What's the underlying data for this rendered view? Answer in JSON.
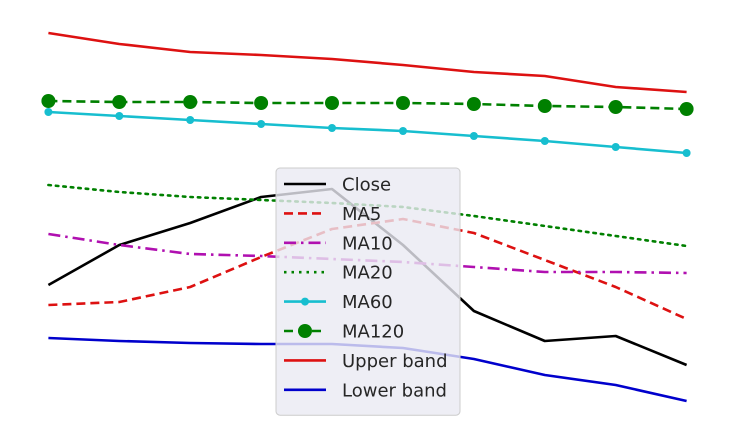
{
  "chart_data": {
    "type": "line",
    "title": "",
    "xlabel": "",
    "ylabel": "",
    "x": [
      0,
      1,
      2,
      3,
      4,
      5,
      6,
      7,
      8,
      9
    ],
    "xlim": [
      -0.02,
      9.02
    ],
    "ylim": [
      0,
      435
    ],
    "axes_visible": false,
    "grid": false,
    "legend_placement": "bottom-center",
    "series": [
      {
        "name": "Close",
        "color": "#000000",
        "dash": "solid",
        "marker": "none",
        "values": [
          150,
          190,
          212,
          238,
          246,
          190,
          124,
          94,
          99,
          70
        ]
      },
      {
        "name": "MA5",
        "color": "#dd1111",
        "dash": "dashed",
        "marker": "none",
        "values": [
          130,
          133,
          148,
          178,
          206,
          216,
          202,
          175,
          148,
          116
        ]
      },
      {
        "name": "MA10",
        "color": "#b010b0",
        "dash": "dashdot",
        "marker": "none",
        "values": [
          201,
          190,
          181,
          179,
          176,
          173,
          168,
          163,
          163,
          162
        ]
      },
      {
        "name": "MA20",
        "color": "#008000",
        "dash": "dotted",
        "marker": "none",
        "values": [
          250,
          243,
          238,
          235,
          232,
          228,
          219,
          209,
          199,
          189
        ]
      },
      {
        "name": "MA60",
        "color": "#17becf",
        "dash": "solid",
        "marker": "small-circle",
        "values": [
          323,
          319,
          315,
          311,
          307,
          304,
          299,
          294,
          288,
          282
        ]
      },
      {
        "name": "MA120",
        "color": "#008000",
        "dash": "dashed",
        "marker": "large-circle",
        "values": [
          334,
          333,
          333,
          332,
          332,
          332,
          331,
          329,
          328,
          326
        ]
      },
      {
        "name": "Upper band",
        "color": "#dd1111",
        "dash": "solid",
        "marker": "none",
        "values": [
          402,
          391,
          383,
          380,
          376,
          370,
          363,
          359,
          348,
          343
        ]
      },
      {
        "name": "Lower band",
        "color": "#0000cc",
        "dash": "solid",
        "marker": "none",
        "values": [
          97,
          94,
          92,
          91,
          91,
          87,
          76,
          60,
          50,
          34
        ]
      }
    ]
  }
}
